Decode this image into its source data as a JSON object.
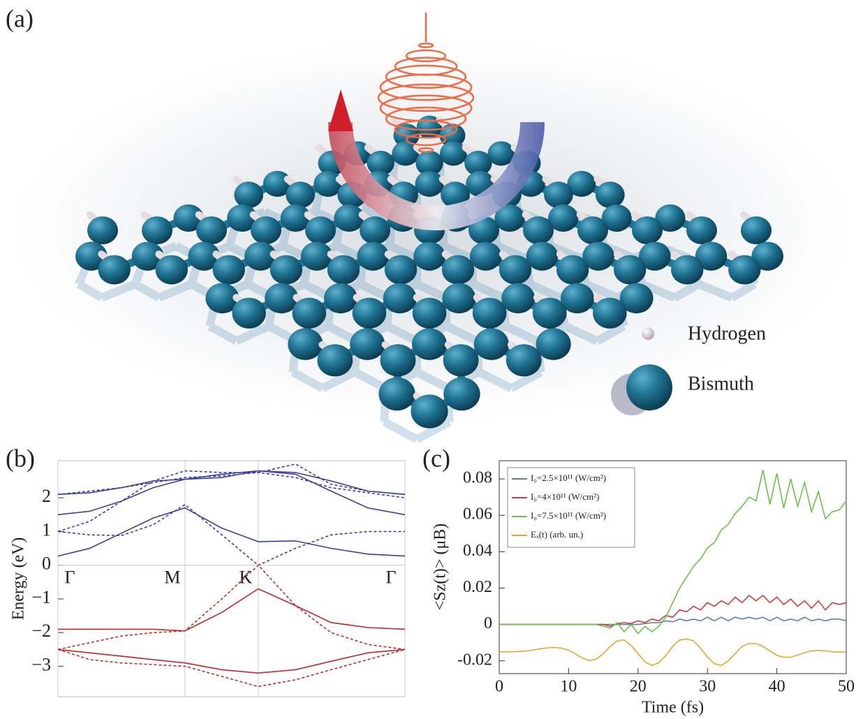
{
  "panel_a": {
    "label": "(a)",
    "legend": [
      "Hydrogen",
      "Bismuth"
    ]
  },
  "chart_data": [
    {
      "type": "line",
      "panel_label": "(b)",
      "ylabel": "Energy (eV)",
      "x": [
        0,
        0.25,
        0.5,
        0.75,
        1.0,
        1.29,
        1.577,
        1.87,
        2.15,
        2.44,
        2.732
      ],
      "xlim": [
        0,
        2.732
      ],
      "xticks": [
        {
          "value": 0,
          "label": "Γ"
        },
        {
          "value": 1.0,
          "label": "M"
        },
        {
          "value": 1.577,
          "label": "K"
        },
        {
          "value": 2.732,
          "label": "Γ"
        }
      ],
      "ylim": [
        -3.9,
        3.1
      ],
      "yticks": [
        {
          "value": -3,
          "label": "−3"
        },
        {
          "value": -2,
          "label": "−2"
        },
        {
          "value": -1,
          "label": "−1"
        },
        0,
        1,
        2
      ],
      "grid": true,
      "zero_line": true,
      "series": [
        {
          "color": "#3b3f9c",
          "style": "solid",
          "values": [
            0.27,
            0.5,
            0.95,
            1.4,
            1.7,
            1.1,
            0.7,
            0.72,
            0.5,
            0.33,
            0.27
          ]
        },
        {
          "color": "#3b3f9c",
          "style": "solid",
          "values": [
            1.5,
            1.6,
            1.9,
            2.3,
            2.55,
            2.7,
            2.8,
            2.7,
            2.2,
            1.7,
            1.5
          ]
        },
        {
          "color": "#3b3f9c",
          "style": "solid",
          "values": [
            2.1,
            2.15,
            2.3,
            2.5,
            2.55,
            2.6,
            2.8,
            2.75,
            2.5,
            2.2,
            2.1
          ]
        },
        {
          "color": "#3b3f9c",
          "style": "dashed",
          "values": [
            1.0,
            0.9,
            0.88,
            1.2,
            1.8,
            0.9,
            0.0,
            0.5,
            0.9,
            1.0,
            1.0
          ]
        },
        {
          "color": "#3b3f9c",
          "style": "dashed",
          "values": [
            1.0,
            1.3,
            1.9,
            2.5,
            2.8,
            2.75,
            2.75,
            3.0,
            2.4,
            2.2,
            2.1
          ]
        },
        {
          "color": "#3b3f9c",
          "style": "dashed",
          "values": [
            2.1,
            2.2,
            2.3,
            2.45,
            2.6,
            2.65,
            2.75,
            2.6,
            2.3,
            2.15,
            2.0
          ]
        },
        {
          "color": "#c0282a",
          "style": "solid",
          "values": [
            -1.9,
            -1.9,
            -1.9,
            -1.9,
            -1.95,
            -1.4,
            -0.7,
            -1.2,
            -1.7,
            -1.85,
            -1.9
          ]
        },
        {
          "color": "#c0282a",
          "style": "solid",
          "values": [
            -2.5,
            -2.6,
            -2.7,
            -2.8,
            -2.9,
            -3.1,
            -3.2,
            -3.1,
            -2.85,
            -2.6,
            -2.5
          ]
        },
        {
          "color": "#c0282a",
          "style": "dashed",
          "values": [
            -2.5,
            -2.3,
            -2.1,
            -2.0,
            -1.95,
            -1.0,
            0.0,
            -1.2,
            -2.0,
            -2.35,
            -2.5
          ]
        },
        {
          "color": "#c0282a",
          "style": "dashed",
          "values": [
            -2.5,
            -2.8,
            -2.9,
            -2.95,
            -3.0,
            -3.3,
            -3.6,
            -3.4,
            -3.1,
            -2.8,
            -2.5
          ]
        }
      ]
    },
    {
      "type": "line",
      "panel_label": "(c)",
      "xlabel": "Time (fs)",
      "ylabel": "<Sz(t)> (μB)",
      "x": [
        0,
        1,
        2,
        3,
        4,
        5,
        6,
        7,
        8,
        9,
        10,
        11,
        12,
        13,
        14,
        15,
        16,
        17,
        18,
        19,
        20,
        21,
        22,
        23,
        24,
        25,
        26,
        27,
        28,
        29,
        30,
        31,
        32,
        33,
        34,
        35,
        36,
        37,
        38,
        39,
        40,
        41,
        42,
        43,
        44,
        45,
        46,
        47,
        48,
        49,
        50
      ],
      "xlim": [
        0,
        50
      ],
      "xticks": [
        0,
        10,
        20,
        30,
        40,
        50
      ],
      "ylim": [
        -0.027,
        0.09
      ],
      "yticks": [
        -0.02,
        0,
        0.02,
        0.04,
        0.06,
        0.08
      ],
      "legend": "upper left",
      "series": [
        {
          "name": "I₀=2.5×10¹¹ (W/cm²)",
          "color": "#5b7fa6",
          "values": [
            0,
            0,
            0,
            0,
            0,
            0,
            0,
            0,
            0,
            0,
            0,
            0,
            0,
            0,
            0,
            0,
            0,
            0,
            0,
            0,
            0,
            0.0005,
            0.001,
            0.001,
            0.002,
            0.0015,
            0.003,
            0.002,
            0.003,
            0.002,
            0.004,
            0.002,
            0.004,
            0.002,
            0.004,
            0.003,
            0.004,
            0.003,
            0.004,
            0.002,
            0.004,
            0.002,
            0.003,
            0.002,
            0.004,
            0.002,
            0.003,
            0.002,
            0.003,
            0.003,
            0.002
          ]
        },
        {
          "name": "I₀=4×10¹¹ (W/cm²)",
          "color": "#d13a3a",
          "values": [
            0,
            0,
            0,
            0,
            0,
            0,
            0,
            0,
            0,
            0,
            0,
            0,
            0,
            0,
            0,
            0,
            -0.001,
            0.0005,
            0.001,
            0.0005,
            0.002,
            0.001,
            0.003,
            0.002,
            0.005,
            0.004,
            0.008,
            0.007,
            0.01,
            0.008,
            0.012,
            0.01,
            0.013,
            0.011,
            0.015,
            0.012,
            0.016,
            0.013,
            0.016,
            0.012,
            0.015,
            0.011,
            0.014,
            0.01,
            0.013,
            0.009,
            0.013,
            0.008,
            0.012,
            0.011,
            0.012
          ]
        },
        {
          "name": "I₀=7.5×10¹¹ (W/cm²)",
          "color": "#6cc04a",
          "values": [
            0,
            0,
            0,
            0,
            0,
            0,
            0,
            0,
            0,
            0,
            0,
            0,
            0,
            0,
            0,
            -0.001,
            -0.002,
            0.001,
            -0.004,
            0,
            -0.005,
            -0.001,
            -0.004,
            -0.001,
            0.004,
            0.012,
            0.02,
            0.026,
            0.032,
            0.036,
            0.042,
            0.045,
            0.052,
            0.055,
            0.061,
            0.065,
            0.07,
            0.068,
            0.085,
            0.066,
            0.083,
            0.064,
            0.08,
            0.065,
            0.078,
            0.062,
            0.073,
            0.058,
            0.062,
            0.063,
            0.068
          ]
        },
        {
          "name": "Eₓ(t) (arb. un.)",
          "color": "#e8a530",
          "values": [
            -0.015,
            -0.015,
            -0.015,
            -0.0148,
            -0.0145,
            -0.014,
            -0.0133,
            -0.0128,
            -0.0126,
            -0.013,
            -0.0142,
            -0.0162,
            -0.0185,
            -0.0198,
            -0.019,
            -0.016,
            -0.012,
            -0.009,
            -0.0085,
            -0.0115,
            -0.016,
            -0.0205,
            -0.0225,
            -0.021,
            -0.017,
            -0.012,
            -0.0085,
            -0.008,
            -0.009,
            -0.013,
            -0.018,
            -0.0215,
            -0.0225,
            -0.02,
            -0.016,
            -0.012,
            -0.0105,
            -0.0105,
            -0.012,
            -0.0145,
            -0.017,
            -0.018,
            -0.018,
            -0.0168,
            -0.0155,
            -0.0145,
            -0.0142,
            -0.0145,
            -0.015,
            -0.0152,
            -0.015
          ]
        }
      ]
    }
  ]
}
